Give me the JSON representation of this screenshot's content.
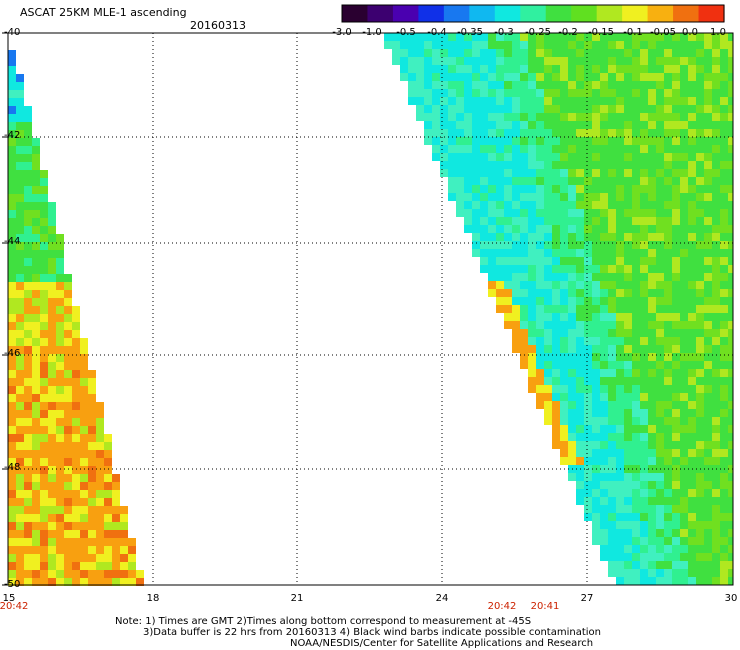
{
  "header": {
    "title": "ASCAT 25KM MLE-1 ascending",
    "date": "20160313"
  },
  "colorbar": {
    "ticks": [
      "-3.0",
      "-1.0",
      "-0.5",
      "-0.4",
      "-0.35",
      "-0.3",
      "-0.25",
      "-0.2",
      "-0.15",
      "-0.1",
      "-0.05",
      "0.0",
      "1.0"
    ],
    "colors": [
      "#2a0030",
      "#3c0070",
      "#4a00b0",
      "#1030e8",
      "#1878f0",
      "#10b8f0",
      "#10e8e0",
      "#30f0a0",
      "#40e040",
      "#60e020",
      "#b0e820",
      "#f0f020",
      "#f8b010",
      "#f07010",
      "#f03010"
    ]
  },
  "map": {
    "lat_labels": [
      "-40",
      "-42",
      "-44",
      "-46",
      "-48",
      "-50"
    ],
    "lon_labels": [
      "15",
      "18",
      "21",
      "24",
      "27",
      "30"
    ],
    "time_labels": [
      "20:42",
      "20:42",
      "20:41"
    ]
  },
  "notes": {
    "line1": "Note: 1) Times are GMT 2)Times along bottom correspond to measurement at -45S",
    "line2": "3)Data buffer is 22 hrs from 20160313 4) Black wind barbs indicate possible contamination",
    "line3": "NOAA/NESDIS/Center for Satellite Applications and Research"
  }
}
